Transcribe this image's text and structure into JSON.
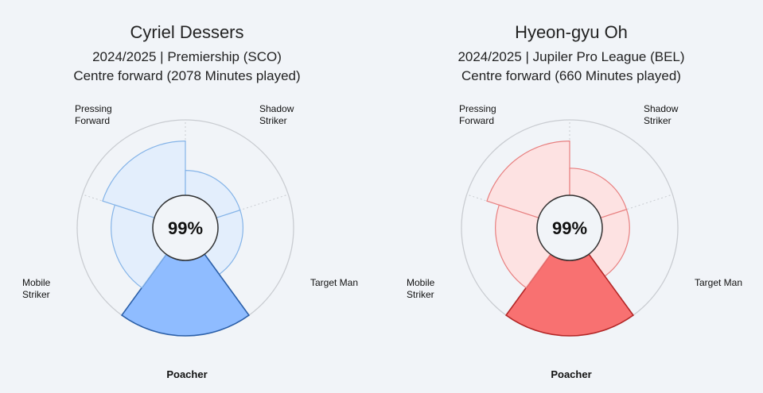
{
  "chart_data": [
    {
      "type": "radar-polar-area",
      "player": "Cyriel Dessers",
      "season_league": "2024/2025 | Premiership (SCO)",
      "position_minutes": "Centre forward (2078 Minutes played)",
      "center_value": "99%",
      "highlighted": "Poacher",
      "colors": {
        "fill": "#8fbcff",
        "fill_light": "#e3eefc",
        "stroke": "#2b5fa8",
        "stroke_light": "#85b4e8"
      },
      "axes": [
        {
          "label": "Pressing Forward",
          "lines": [
            "Pressing",
            "Forward"
          ],
          "value": 0.72
        },
        {
          "label": "Shadow Striker",
          "lines": [
            "Shadow",
            "Striker"
          ],
          "value": 0.33
        },
        {
          "label": "Target Man",
          "lines": [
            "Target Man"
          ],
          "value": 0.33
        },
        {
          "label": "Poacher",
          "lines": [
            "Poacher"
          ],
          "value": 1.0
        },
        {
          "label": "Mobile Striker",
          "lines": [
            "Mobile",
            "Striker"
          ],
          "value": 0.55
        }
      ]
    },
    {
      "type": "radar-polar-area",
      "player": "Hyeon-gyu Oh",
      "season_league": "2024/2025 | Jupiler Pro League (BEL)",
      "position_minutes": "Centre forward (660 Minutes played)",
      "center_value": "99%",
      "highlighted": "Poacher",
      "colors": {
        "fill": "#f87171",
        "fill_light": "#fde2e2",
        "stroke": "#b32626",
        "stroke_light": "#e88080"
      },
      "axes": [
        {
          "label": "Pressing Forward",
          "lines": [
            "Pressing",
            "Forward"
          ],
          "value": 0.72
        },
        {
          "label": "Shadow Striker",
          "lines": [
            "Shadow",
            "Striker"
          ],
          "value": 0.36
        },
        {
          "label": "Target Man",
          "lines": [
            "Target Man"
          ],
          "value": 0.36
        },
        {
          "label": "Poacher",
          "lines": [
            "Poacher"
          ],
          "value": 1.0
        },
        {
          "label": "Mobile Striker",
          "lines": [
            "Mobile",
            "Striker"
          ],
          "value": 0.55
        }
      ]
    }
  ]
}
